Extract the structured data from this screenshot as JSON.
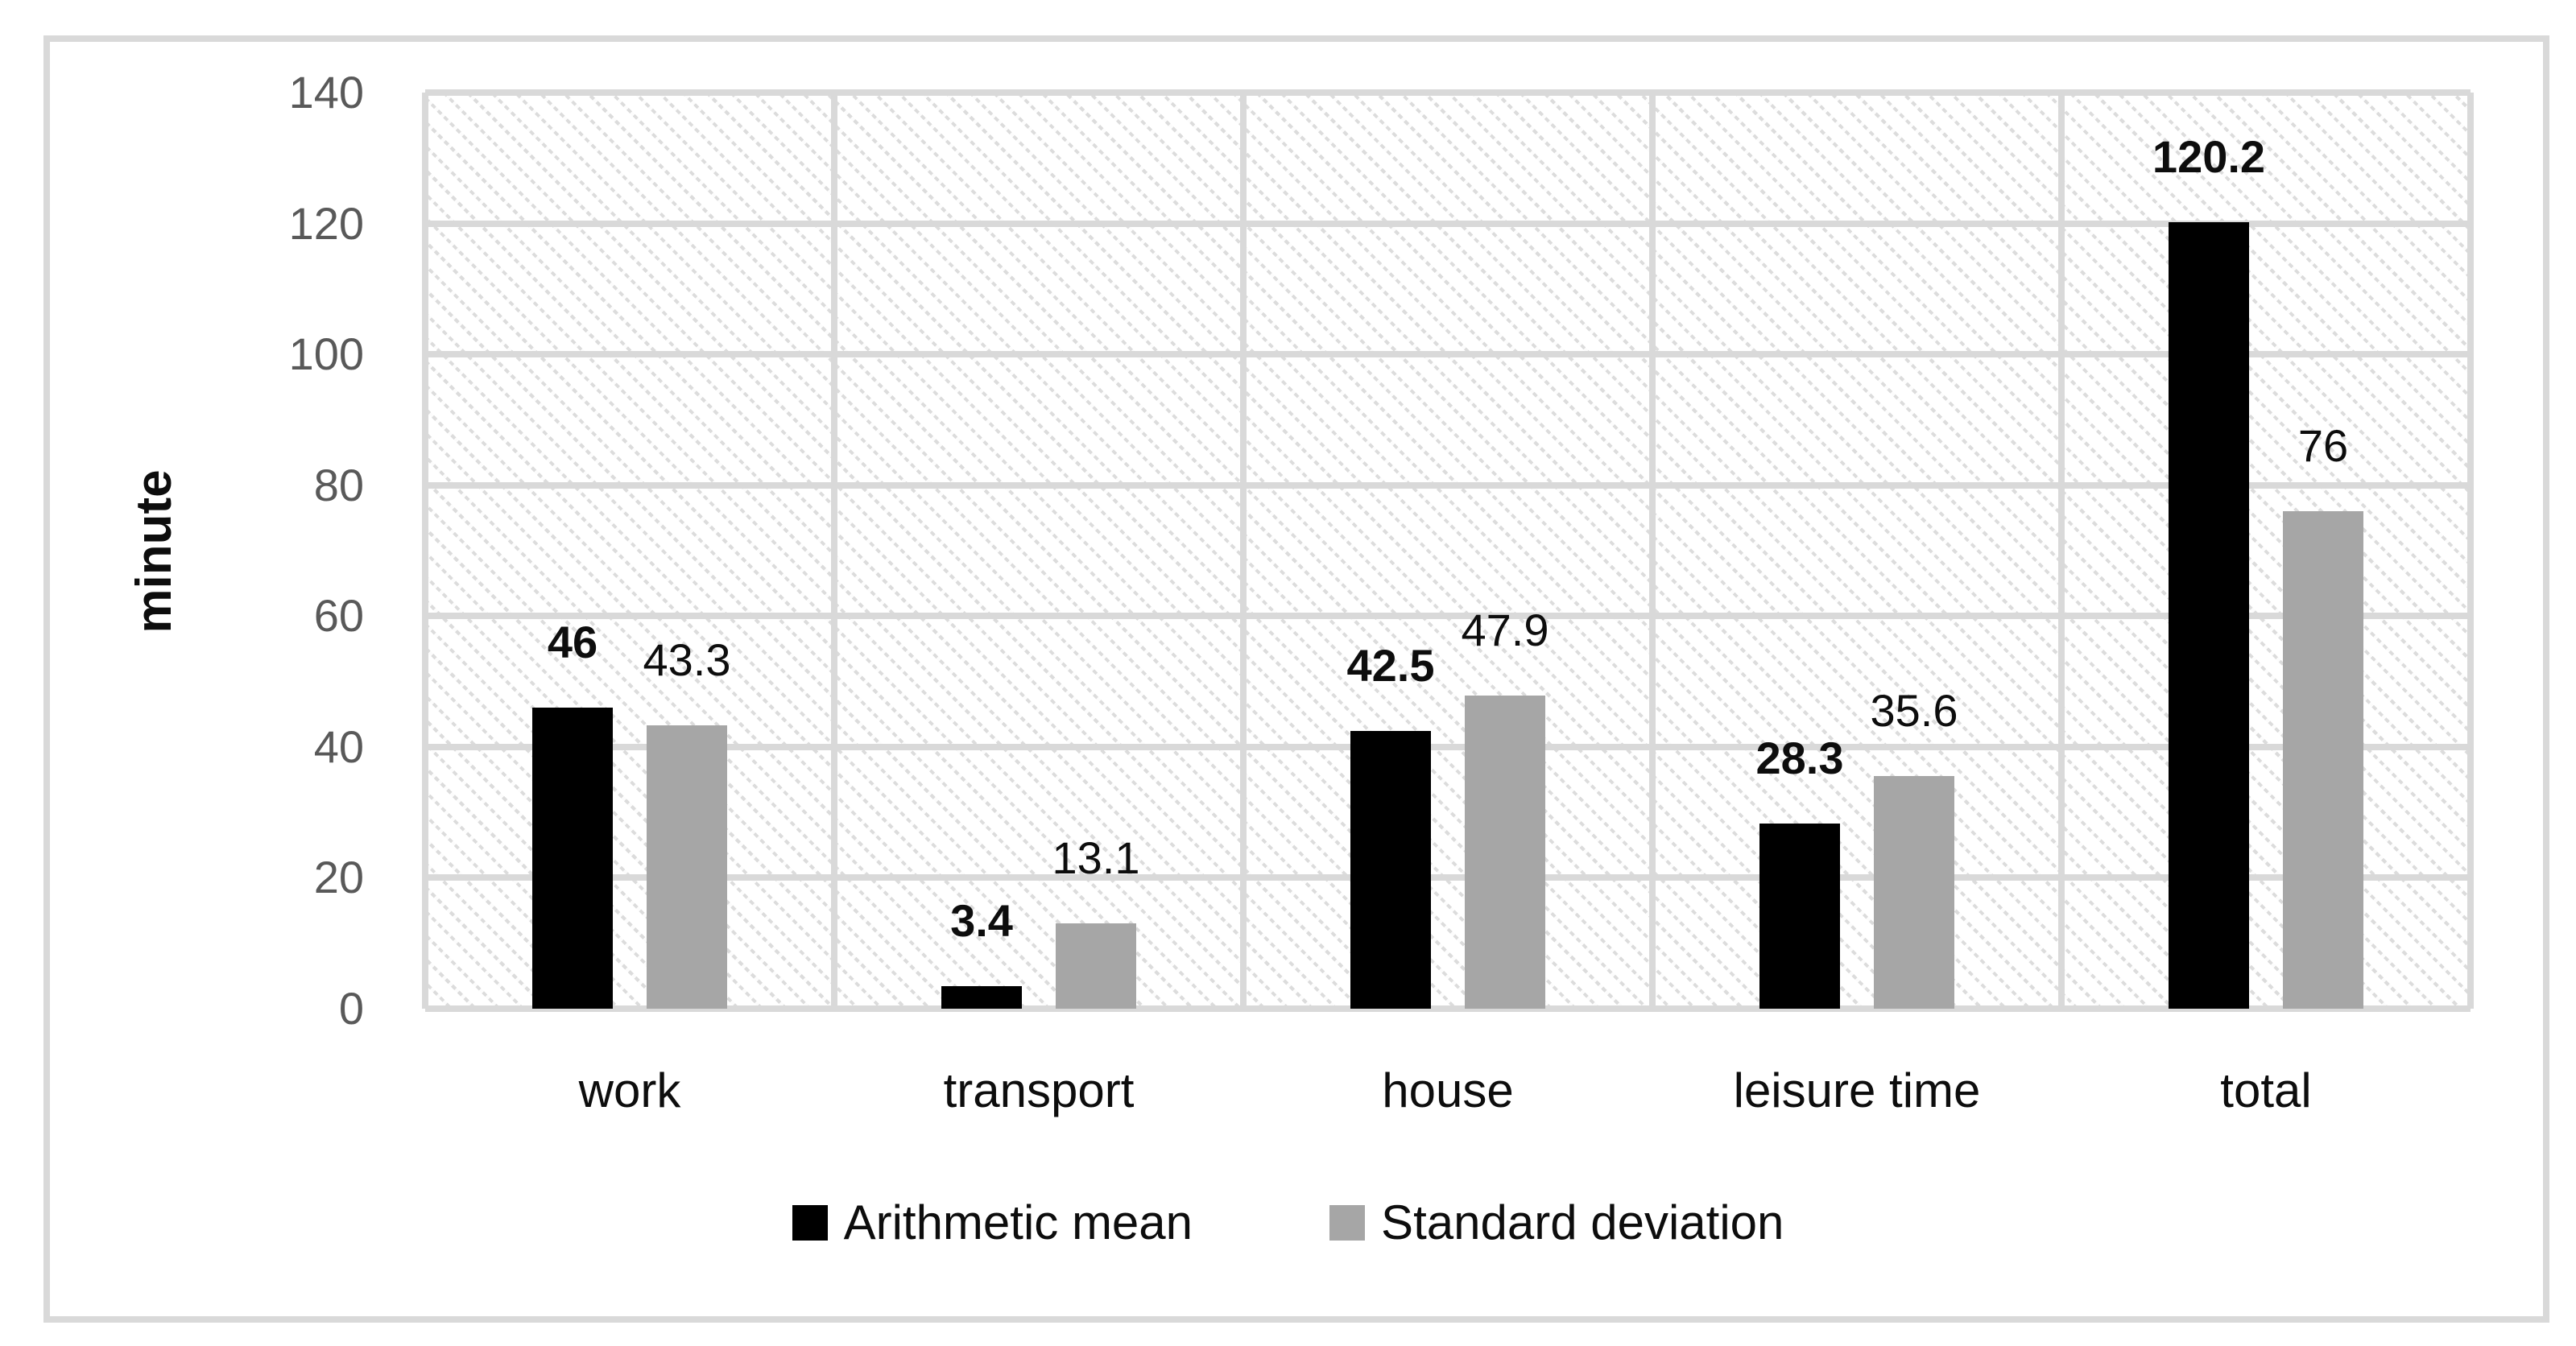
{
  "figure": {
    "background_color": "#ffffff",
    "border_color": "#d9d9d9"
  },
  "colors": {
    "gridline": "#d9d9d9",
    "hatch_stripe": "#dcdcdc",
    "tick_text": "#595959",
    "label_text": "#0d0d0d",
    "mean_bar": "#000000",
    "std_bar": "#a6a6a6"
  },
  "chart_data": {
    "type": "bar",
    "title": "",
    "xlabel": "",
    "ylabel": "minute",
    "categories": [
      "work",
      "transport",
      "house",
      "leisure time",
      "total"
    ],
    "series": [
      {
        "name": "Arithmetic mean",
        "color": "#000000",
        "values": [
          46,
          3.4,
          42.5,
          28.3,
          120.2
        ],
        "labels": [
          "46",
          "3.4",
          "42.5",
          "28.3",
          "120.2"
        ],
        "label_bold": true
      },
      {
        "name": "Standard deviation",
        "color": "#a6a6a6",
        "values": [
          43.3,
          13.1,
          47.9,
          35.6,
          76
        ],
        "labels": [
          "43.3",
          "13.1",
          "47.9",
          "35.6",
          "76"
        ],
        "label_bold": false
      }
    ],
    "ylim": [
      0,
      140
    ],
    "yticks": [
      0,
      20,
      40,
      60,
      80,
      100,
      120,
      140
    ],
    "grid": "horizontal gridlines every 20 + vertical category separators",
    "legend_position": "bottom",
    "plot_background": "light diagonal hatch pattern"
  }
}
